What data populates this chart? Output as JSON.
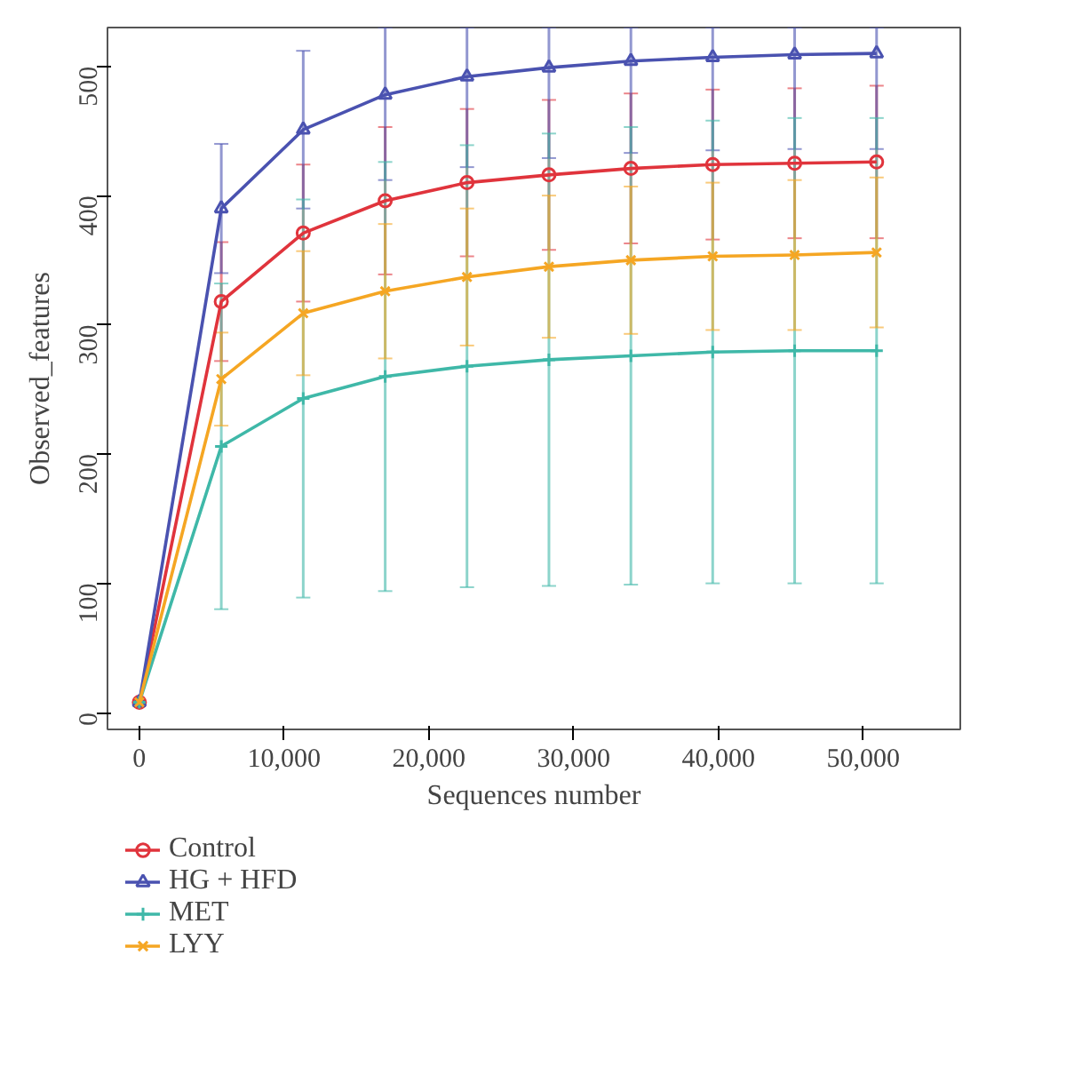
{
  "chart_data": {
    "type": "line",
    "xlabel": "Sequences number",
    "ylabel": "Observed_features",
    "x": [
      0,
      5660,
      11320,
      16980,
      22630,
      28290,
      33950,
      39600,
      45260,
      50920
    ],
    "xlim": [
      -2200,
      56700
    ],
    "xticks": [
      0,
      {
        "value": 10000,
        "label": "10,000"
      },
      {
        "value": 20000,
        "label": "20,000"
      },
      {
        "value": 30000,
        "label": "30,000"
      },
      {
        "value": 40000,
        "label": "40,000"
      },
      {
        "value": 50000,
        "label": "50,000"
      }
    ],
    "ylim": [
      -13,
      530
    ],
    "yticks": [
      0,
      100,
      200,
      300,
      400,
      500
    ],
    "grid": false,
    "legend": "bottom left",
    "line_style": "solid",
    "series": [
      {
        "name": "Control",
        "color": "#e0343c",
        "marker": "circle",
        "values": [
          8,
          318,
          371,
          396,
          410,
          416,
          421,
          424,
          425,
          426
        ],
        "errors": [
          null,
          46,
          53,
          57,
          57,
          58,
          58,
          58,
          58,
          59
        ]
      },
      {
        "name": "HG + HFD",
        "color": "#4a52b0",
        "marker": "triangle",
        "values": [
          8,
          390,
          451,
          478,
          492,
          499,
          504,
          507,
          509,
          510
        ],
        "errors": [
          null,
          50,
          61,
          [
            412,
            530
          ],
          [
            422,
            530
          ],
          [
            429,
            530
          ],
          [
            433,
            530
          ],
          [
            435,
            530
          ],
          [
            436,
            530
          ],
          [
            436,
            530
          ]
        ]
      },
      {
        "name": "MET",
        "color": "#3fb8a8",
        "marker": "cross",
        "values": [
          8,
          206,
          243,
          260,
          268,
          273,
          276,
          279,
          280,
          280
        ],
        "errors": [
          null,
          126,
          154,
          166,
          171,
          175,
          177,
          179,
          180,
          180
        ]
      },
      {
        "name": "LYY",
        "color": "#f5a623",
        "marker": "x",
        "values": [
          8,
          258,
          309,
          326,
          337,
          345,
          350,
          353,
          354,
          356
        ],
        "errors": [
          null,
          36,
          48,
          52,
          53,
          55,
          57,
          57,
          58,
          58
        ]
      }
    ]
  }
}
